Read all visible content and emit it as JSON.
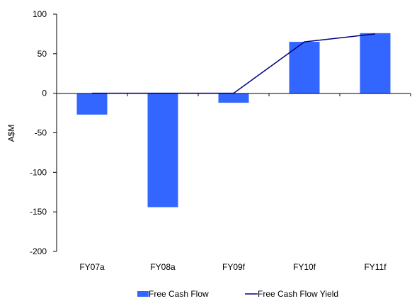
{
  "chart_data": {
    "type": "bar",
    "title": "",
    "xlabel": "",
    "ylabel": "A$M",
    "ylim": [
      -200,
      100
    ],
    "yticks": [
      100,
      50,
      0,
      -50,
      -100,
      -150,
      -200
    ],
    "grid": false,
    "legend_position": "bottom",
    "categories": [
      "FY07a",
      "FY08a",
      "FY09f",
      "FY10f",
      "FY11f"
    ],
    "series": [
      {
        "name": "Free Cash Flow",
        "type": "bar",
        "color": "#3366ff",
        "values": [
          -27,
          -144,
          -12,
          65,
          76
        ]
      },
      {
        "name": "Free Cash Flow Yield",
        "type": "line",
        "color": "#000080",
        "values": [
          0,
          0,
          0,
          65,
          75
        ]
      }
    ]
  }
}
